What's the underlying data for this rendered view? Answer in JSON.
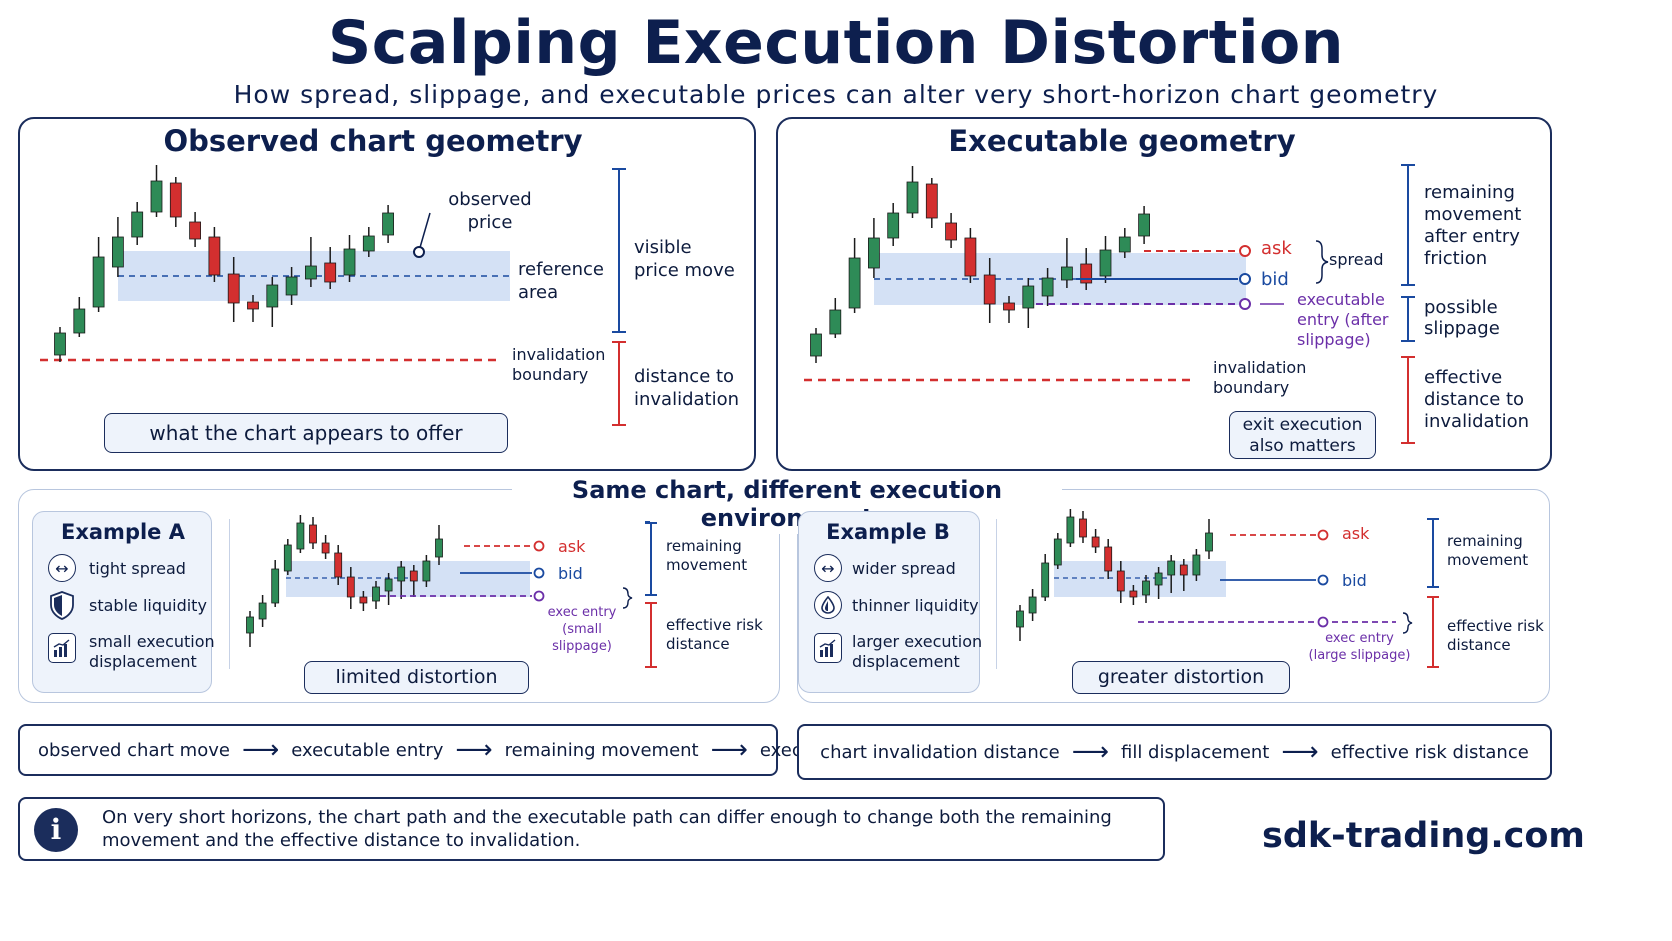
{
  "header": {
    "title": "Scalping Execution Distortion",
    "subtitle": "How spread, slippage, and executable prices can alter very short-horizon chart geometry"
  },
  "observed": {
    "title": "Observed chart geometry",
    "observed_price": "observed\nprice",
    "reference_area": "reference\narea",
    "invalidation_boundary": "invalidation\nboundary",
    "visible_price_move": "visible\nprice move",
    "distance_to_invalidation": "distance to\ninvalidation",
    "pill": "what the chart appears to offer"
  },
  "executable": {
    "title": "Executable geometry",
    "ask": "ask",
    "bid": "bid",
    "spread": "spread",
    "executable_entry": "executable\nentry (after\nslippage)",
    "invalidation_boundary": "invalidation\nboundary",
    "remaining_movement": "remaining\nmovement\nafter entry\nfriction",
    "possible_slippage": "possible\nslippage",
    "effective_distance": "effective\ndistance to\ninvalidation",
    "pill": "exit execution\nalso matters"
  },
  "section": {
    "title": "Same chart, different execution environment"
  },
  "example_a": {
    "title": "Example A",
    "items": [
      {
        "icon": "arrows-icon",
        "label": "tight spread"
      },
      {
        "icon": "shield-icon",
        "label": "stable liquidity"
      },
      {
        "icon": "bar-chart-icon",
        "label": "small execution\ndisplacement"
      }
    ],
    "ask": "ask",
    "bid": "bid",
    "exec_entry": "exec entry\n(small slippage)",
    "remaining": "remaining\nmovement",
    "risk": "effective risk\ndistance",
    "pill": "limited distortion"
  },
  "example_b": {
    "title": "Example B",
    "items": [
      {
        "icon": "arrows-icon",
        "label": "wider spread"
      },
      {
        "icon": "droplet-icon",
        "label": "thinner liquidity"
      },
      {
        "icon": "bar-chart-icon",
        "label": "larger execution\ndisplacement"
      }
    ],
    "ask": "ask",
    "bid": "bid",
    "exec_entry": "exec entry\n(large slippage)",
    "remaining": "remaining\nmovement",
    "risk": "effective risk\ndistance",
    "pill": "greater distortion"
  },
  "flow_left": [
    "observed chart move",
    "executable entry",
    "remaining movement",
    "executable exit"
  ],
  "flow_right": [
    "chart invalidation distance",
    "fill displacement",
    "effective risk distance"
  ],
  "info": {
    "icon": "info-icon",
    "text": "On very short horizons, the chart path and the executable path can differ enough to change both the remaining movement and the effective distance to invalidation."
  },
  "brand": "sdk-trading.com",
  "colors": {
    "navy": "#0d1f4e",
    "bull": "#2e8b57",
    "bear": "#d32f2f",
    "ask": "#d32f2f",
    "bid": "#1a4aa0",
    "entry": "#6b2fa8",
    "reference_fill": "#c9daf2"
  }
}
